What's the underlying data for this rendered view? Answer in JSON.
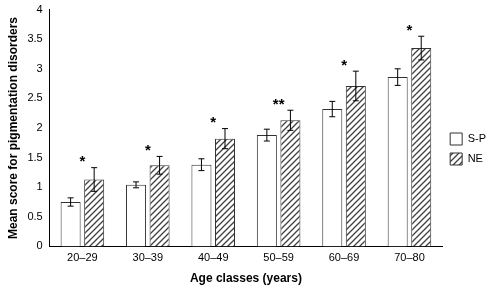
{
  "chart_data": {
    "type": "bar",
    "x_label": "Age classes (years)",
    "y_label": "Mean score for pigmentation disorders",
    "categories": [
      "20–29",
      "30–39",
      "40–49",
      "50–59",
      "60–69",
      "70–80"
    ],
    "series": [
      {
        "name": "S-P",
        "color": "#ffffff",
        "values": [
          0.75,
          1.04,
          1.38,
          1.88,
          2.32,
          2.86
        ],
        "errors": [
          0.07,
          0.05,
          0.1,
          0.1,
          0.13,
          0.14
        ]
      },
      {
        "name": "NE",
        "color": "#404040",
        "marker": "hatch",
        "values": [
          1.13,
          1.37,
          1.82,
          2.13,
          2.71,
          3.35
        ],
        "errors": [
          0.2,
          0.15,
          0.17,
          0.17,
          0.25,
          0.2
        ]
      }
    ],
    "annotations": [
      "*",
      "*",
      "*",
      "**",
      "*",
      "*"
    ],
    "ylim": [
      0,
      4
    ],
    "yticks": [
      0,
      0.5,
      1,
      1.5,
      2,
      2.5,
      3,
      3.5,
      4
    ],
    "grid": false,
    "legend": "right"
  }
}
